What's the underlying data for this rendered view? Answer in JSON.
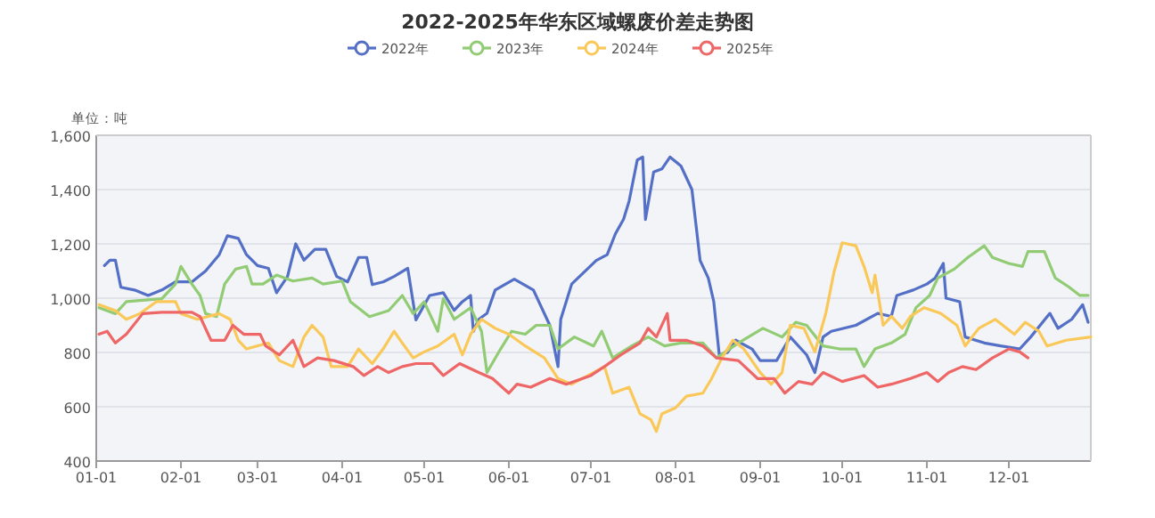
{
  "chart_data": {
    "type": "line",
    "title": "2022-2025年华东区域螺废价差走势图",
    "ylabel": "单位：吨",
    "legend": "top",
    "grid": "y",
    "xlim": [
      "--01-01",
      "--12-31"
    ],
    "xticks": [
      {
        "value": "--01-01",
        "label": "01-01"
      },
      {
        "value": "--02-01",
        "label": "02-01"
      },
      {
        "value": "--03-01",
        "label": "03-01"
      },
      {
        "value": "--04-01",
        "label": "04-01"
      },
      {
        "value": "--05-01",
        "label": "05-01"
      },
      {
        "value": "--06-01",
        "label": "06-01"
      },
      {
        "value": "--07-01",
        "label": "07-01"
      },
      {
        "value": "--08-01",
        "label": "08-01"
      },
      {
        "value": "--09-01",
        "label": "09-01"
      },
      {
        "value": "--10-01",
        "label": "10-01"
      },
      {
        "value": "--11-01",
        "label": "11-01"
      },
      {
        "value": "--12-01",
        "label": "12-01"
      }
    ],
    "ylim": [
      400,
      1600
    ],
    "yticks": [
      400,
      600,
      800,
      {
        "value": 1000,
        "label": "1,000"
      },
      {
        "value": 1200,
        "label": "1,200"
      },
      {
        "value": 1400,
        "label": "1,400"
      },
      {
        "value": 1600,
        "label": "1,600"
      }
    ],
    "series": [
      {
        "name": "2022年",
        "color": "#5470c6",
        "x": [
          "--01-04",
          "--01-06",
          "--01-08",
          "--01-10",
          "--01-15",
          "--01-20",
          "--01-25",
          "--01-30",
          "--02-05",
          "--02-10",
          "--02-15",
          "--02-18",
          "--02-22",
          "--02-25",
          "--03-01",
          "--03-05",
          "--03-08",
          "--03-12",
          "--03-15",
          "--03-18",
          "--03-22",
          "--03-26",
          "--03-30",
          "--04-03",
          "--04-07",
          "--04-10",
          "--04-12",
          "--04-16",
          "--04-20",
          "--04-25",
          "--04-28",
          "--05-03",
          "--05-08",
          "--05-12",
          "--05-15",
          "--05-18",
          "--05-19",
          "--05-21",
          "--05-24",
          "--05-27",
          "--06-03",
          "--06-10",
          "--06-16",
          "--06-19",
          "--06-20",
          "--06-24",
          "--07-03",
          "--07-07",
          "--07-10",
          "--07-13",
          "--07-15",
          "--07-18",
          "--07-20",
          "--07-21",
          "--07-24",
          "--07-27",
          "--07-30",
          "--08-03",
          "--08-07",
          "--08-10",
          "--08-13",
          "--08-15",
          "--08-17",
          "--08-20",
          "--08-23",
          "--08-29",
          "--09-01",
          "--09-07",
          "--09-12",
          "--09-18",
          "--09-21",
          "--09-24",
          "--09-27",
          "--10-06",
          "--10-14",
          "--10-19",
          "--10-21",
          "--10-27",
          "--11-01",
          "--11-04",
          "--11-07",
          "--11-08",
          "--11-13",
          "--11-15",
          "--11-22",
          "--11-28",
          "--12-05",
          "--12-09",
          "--12-16",
          "--12-19",
          "--12-24",
          "--12-28",
          "--12-30"
        ],
        "values": [
          1120,
          1140,
          1140,
          1040,
          1030,
          1010,
          1030,
          1060,
          1060,
          1100,
          1160,
          1230,
          1220,
          1160,
          1120,
          1110,
          1020,
          1080,
          1200,
          1140,
          1180,
          1180,
          1080,
          1060,
          1150,
          1150,
          1050,
          1060,
          1080,
          1110,
          920,
          1010,
          1020,
          955,
          987,
          1010,
          878,
          922,
          944,
          1030,
          1070,
          1030,
          900,
          748,
          922,
          1052,
          1139,
          1160,
          1237,
          1291,
          1357,
          1509,
          1520,
          1290,
          1465,
          1476,
          1520,
          1487,
          1400,
          1139,
          1074,
          987,
          791,
          800,
          845,
          813,
          770,
          770,
          857,
          791,
          726,
          857,
          878,
          900,
          944,
          933,
          1010,
          1030,
          1052,
          1074,
          1128,
          1000,
          987,
          857,
          835,
          824,
          813,
          857,
          944,
          889,
          922,
          976,
          911
        ]
      },
      {
        "name": "2023年",
        "color": "#91cc75",
        "x": [
          "--01-02",
          "--01-08",
          "--01-12",
          "--01-25",
          "--01-30",
          "--02-01",
          "--02-05",
          "--02-08",
          "--02-10",
          "--02-14",
          "--02-17",
          "--02-21",
          "--02-25",
          "--02-27",
          "--03-03",
          "--03-08",
          "--03-14",
          "--03-21",
          "--03-25",
          "--04-01",
          "--04-04",
          "--04-11",
          "--04-18",
          "--04-23",
          "--04-27",
          "--05-01",
          "--05-06",
          "--05-08",
          "--05-12",
          "--05-18",
          "--05-22",
          "--05-24",
          "--05-29",
          "--06-02",
          "--06-07",
          "--06-11",
          "--06-16",
          "--06-19",
          "--06-25",
          "--07-02",
          "--07-05",
          "--07-09",
          "--07-16",
          "--07-22",
          "--07-28",
          "--08-03",
          "--08-11",
          "--08-16",
          "--08-24",
          "--09-02",
          "--09-09",
          "--09-14",
          "--09-18",
          "--09-24",
          "--09-30",
          "--10-06",
          "--10-09",
          "--10-13",
          "--10-19",
          "--10-24",
          "--10-28",
          "--11-02",
          "--11-05",
          "--11-11",
          "--11-16",
          "--11-22",
          "--11-25",
          "--12-01",
          "--12-06",
          "--12-08",
          "--12-14",
          "--12-18",
          "--12-23",
          "--12-27",
          "--12-30"
        ],
        "values": [
          965,
          943,
          987,
          998,
          1052,
          1117,
          1052,
          1010,
          943,
          932,
          1052,
          1107,
          1117,
          1052,
          1052,
          1085,
          1063,
          1074,
          1052,
          1063,
          987,
          932,
          954,
          1010,
          943,
          987,
          878,
          998,
          922,
          965,
          878,
          726,
          813,
          878,
          867,
          900,
          900,
          813,
          857,
          824,
          878,
          780,
          824,
          857,
          824,
          835,
          835,
          780,
          835,
          889,
          857,
          911,
          900,
          824,
          813,
          813,
          748,
          813,
          835,
          867,
          965,
          1010,
          1074,
          1107,
          1150,
          1193,
          1150,
          1128,
          1117,
          1172,
          1172,
          1074,
          1041,
          1010,
          1010
        ]
      },
      {
        "name": "2024年",
        "color": "#fac858",
        "x": [
          "--01-02",
          "--01-08",
          "--01-12",
          "--01-17",
          "--01-23",
          "--01-30",
          "--02-01",
          "--02-07",
          "--02-15",
          "--02-19",
          "--02-22",
          "--02-25",
          "--03-05",
          "--03-09",
          "--03-14",
          "--03-18",
          "--03-21",
          "--03-25",
          "--03-28",
          "--04-03",
          "--04-07",
          "--04-12",
          "--04-16",
          "--04-20",
          "--04-23",
          "--04-27",
          "--05-01",
          "--05-06",
          "--05-12",
          "--05-15",
          "--05-18",
          "--05-22",
          "--05-27",
          "--06-01",
          "--06-07",
          "--06-14",
          "--06-19",
          "--06-24",
          "--07-02",
          "--07-06",
          "--07-09",
          "--07-15",
          "--07-19",
          "--07-23",
          "--07-25",
          "--07-27",
          "--08-01",
          "--08-05",
          "--08-11",
          "--08-14",
          "--08-18",
          "--08-22",
          "--08-26",
          "--09-01",
          "--09-05",
          "--09-09",
          "--09-12",
          "--09-17",
          "--09-21",
          "--09-25",
          "--09-28",
          "--10-01",
          "--10-06",
          "--10-09",
          "--10-12",
          "--10-13",
          "--10-16",
          "--10-19",
          "--10-23",
          "--10-26",
          "--10-31",
          "--11-06",
          "--11-12",
          "--11-15",
          "--11-20",
          "--11-26",
          "--12-03",
          "--12-07",
          "--12-12",
          "--12-15",
          "--12-22",
          "--12-31"
        ],
        "values": [
          976,
          954,
          922,
          943,
          987,
          987,
          943,
          922,
          943,
          922,
          845,
          813,
          835,
          770,
          748,
          857,
          900,
          857,
          748,
          748,
          813,
          759,
          813,
          878,
          835,
          780,
          802,
          824,
          867,
          791,
          867,
          922,
          889,
          867,
          824,
          780,
          704,
          683,
          726,
          748,
          650,
          672,
          574,
          552,
          509,
          574,
          596,
          639,
          650,
          700,
          780,
          845,
          813,
          726,
          683,
          726,
          900,
          889,
          802,
          944,
          1096,
          1204,
          1193,
          1117,
          1020,
          1085,
          900,
          933,
          889,
          933,
          965,
          944,
          900,
          824,
          889,
          922,
          867,
          911,
          878,
          824,
          845,
          857
        ]
      },
      {
        "name": "2025年",
        "color": "#ee6666",
        "x": [
          "--01-02",
          "--01-05",
          "--01-08",
          "--01-12",
          "--01-18",
          "--01-25",
          "--02-05",
          "--02-08",
          "--02-12",
          "--02-17",
          "--02-20",
          "--02-24",
          "--03-02",
          "--03-04",
          "--03-09",
          "--03-14",
          "--03-18",
          "--03-23",
          "--03-29",
          "--04-05",
          "--04-09",
          "--04-14",
          "--04-18",
          "--04-23",
          "--04-28",
          "--05-04",
          "--05-08",
          "--05-14",
          "--05-21",
          "--05-26",
          "--06-01",
          "--06-04",
          "--06-09",
          "--06-16",
          "--06-22",
          "--07-01",
          "--07-06",
          "--07-12",
          "--07-19",
          "--07-22",
          "--07-25",
          "--07-29",
          "--07-30",
          "--08-05",
          "--08-11",
          "--08-16",
          "--08-24",
          "--08-31",
          "--09-06",
          "--09-10",
          "--09-15",
          "--09-20",
          "--09-24",
          "--10-01",
          "--10-09",
          "--10-14",
          "--10-19",
          "--10-26",
          "--11-01",
          "--11-05",
          "--11-09",
          "--11-14",
          "--11-19",
          "--11-25",
          "--12-01",
          "--12-05",
          "--12-08"
        ],
        "values": [
          867,
          878,
          835,
          867,
          943,
          948,
          948,
          932,
          845,
          845,
          900,
          867,
          867,
          824,
          791,
          845,
          748,
          780,
          770,
          748,
          715,
          748,
          726,
          748,
          759,
          759,
          715,
          759,
          726,
          704,
          650,
          683,
          672,
          704,
          683,
          715,
          748,
          791,
          835,
          889,
          857,
          944,
          845,
          845,
          824,
          780,
          770,
          704,
          704,
          650,
          693,
          683,
          726,
          693,
          715,
          672,
          683,
          704,
          726,
          693,
          726,
          748,
          737,
          780,
          813,
          802,
          780
        ]
      }
    ]
  }
}
